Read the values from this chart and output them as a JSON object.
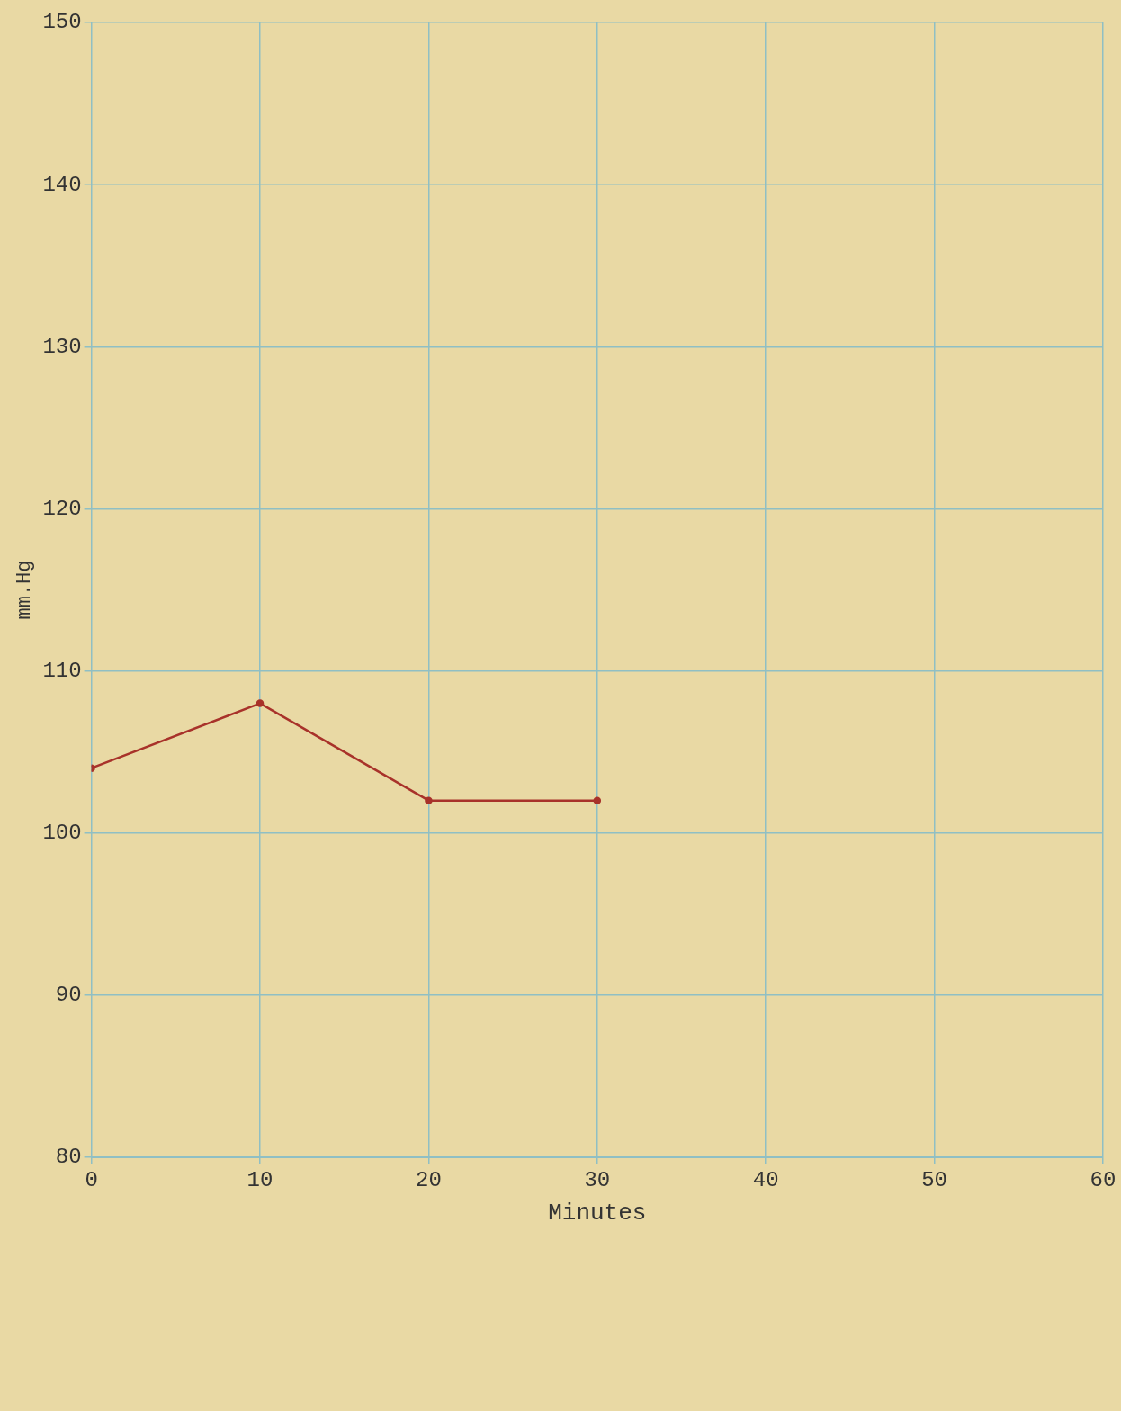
{
  "chart_data": {
    "type": "line",
    "xlabel": "Minutes",
    "ylabel": "mm.Hg",
    "x": [
      0,
      10,
      20,
      30
    ],
    "series": [
      {
        "color": "#a8322a",
        "values": [
          104,
          108,
          102,
          102
        ]
      }
    ],
    "xlim": [
      0,
      60
    ],
    "xticks": [
      0,
      10,
      20,
      30,
      40,
      50,
      60
    ],
    "ylim": [
      80,
      150
    ],
    "yticks": [
      80,
      90,
      100,
      110,
      120,
      130,
      140,
      150
    ],
    "grid": true,
    "marker": "circle",
    "line_style": "solid"
  }
}
